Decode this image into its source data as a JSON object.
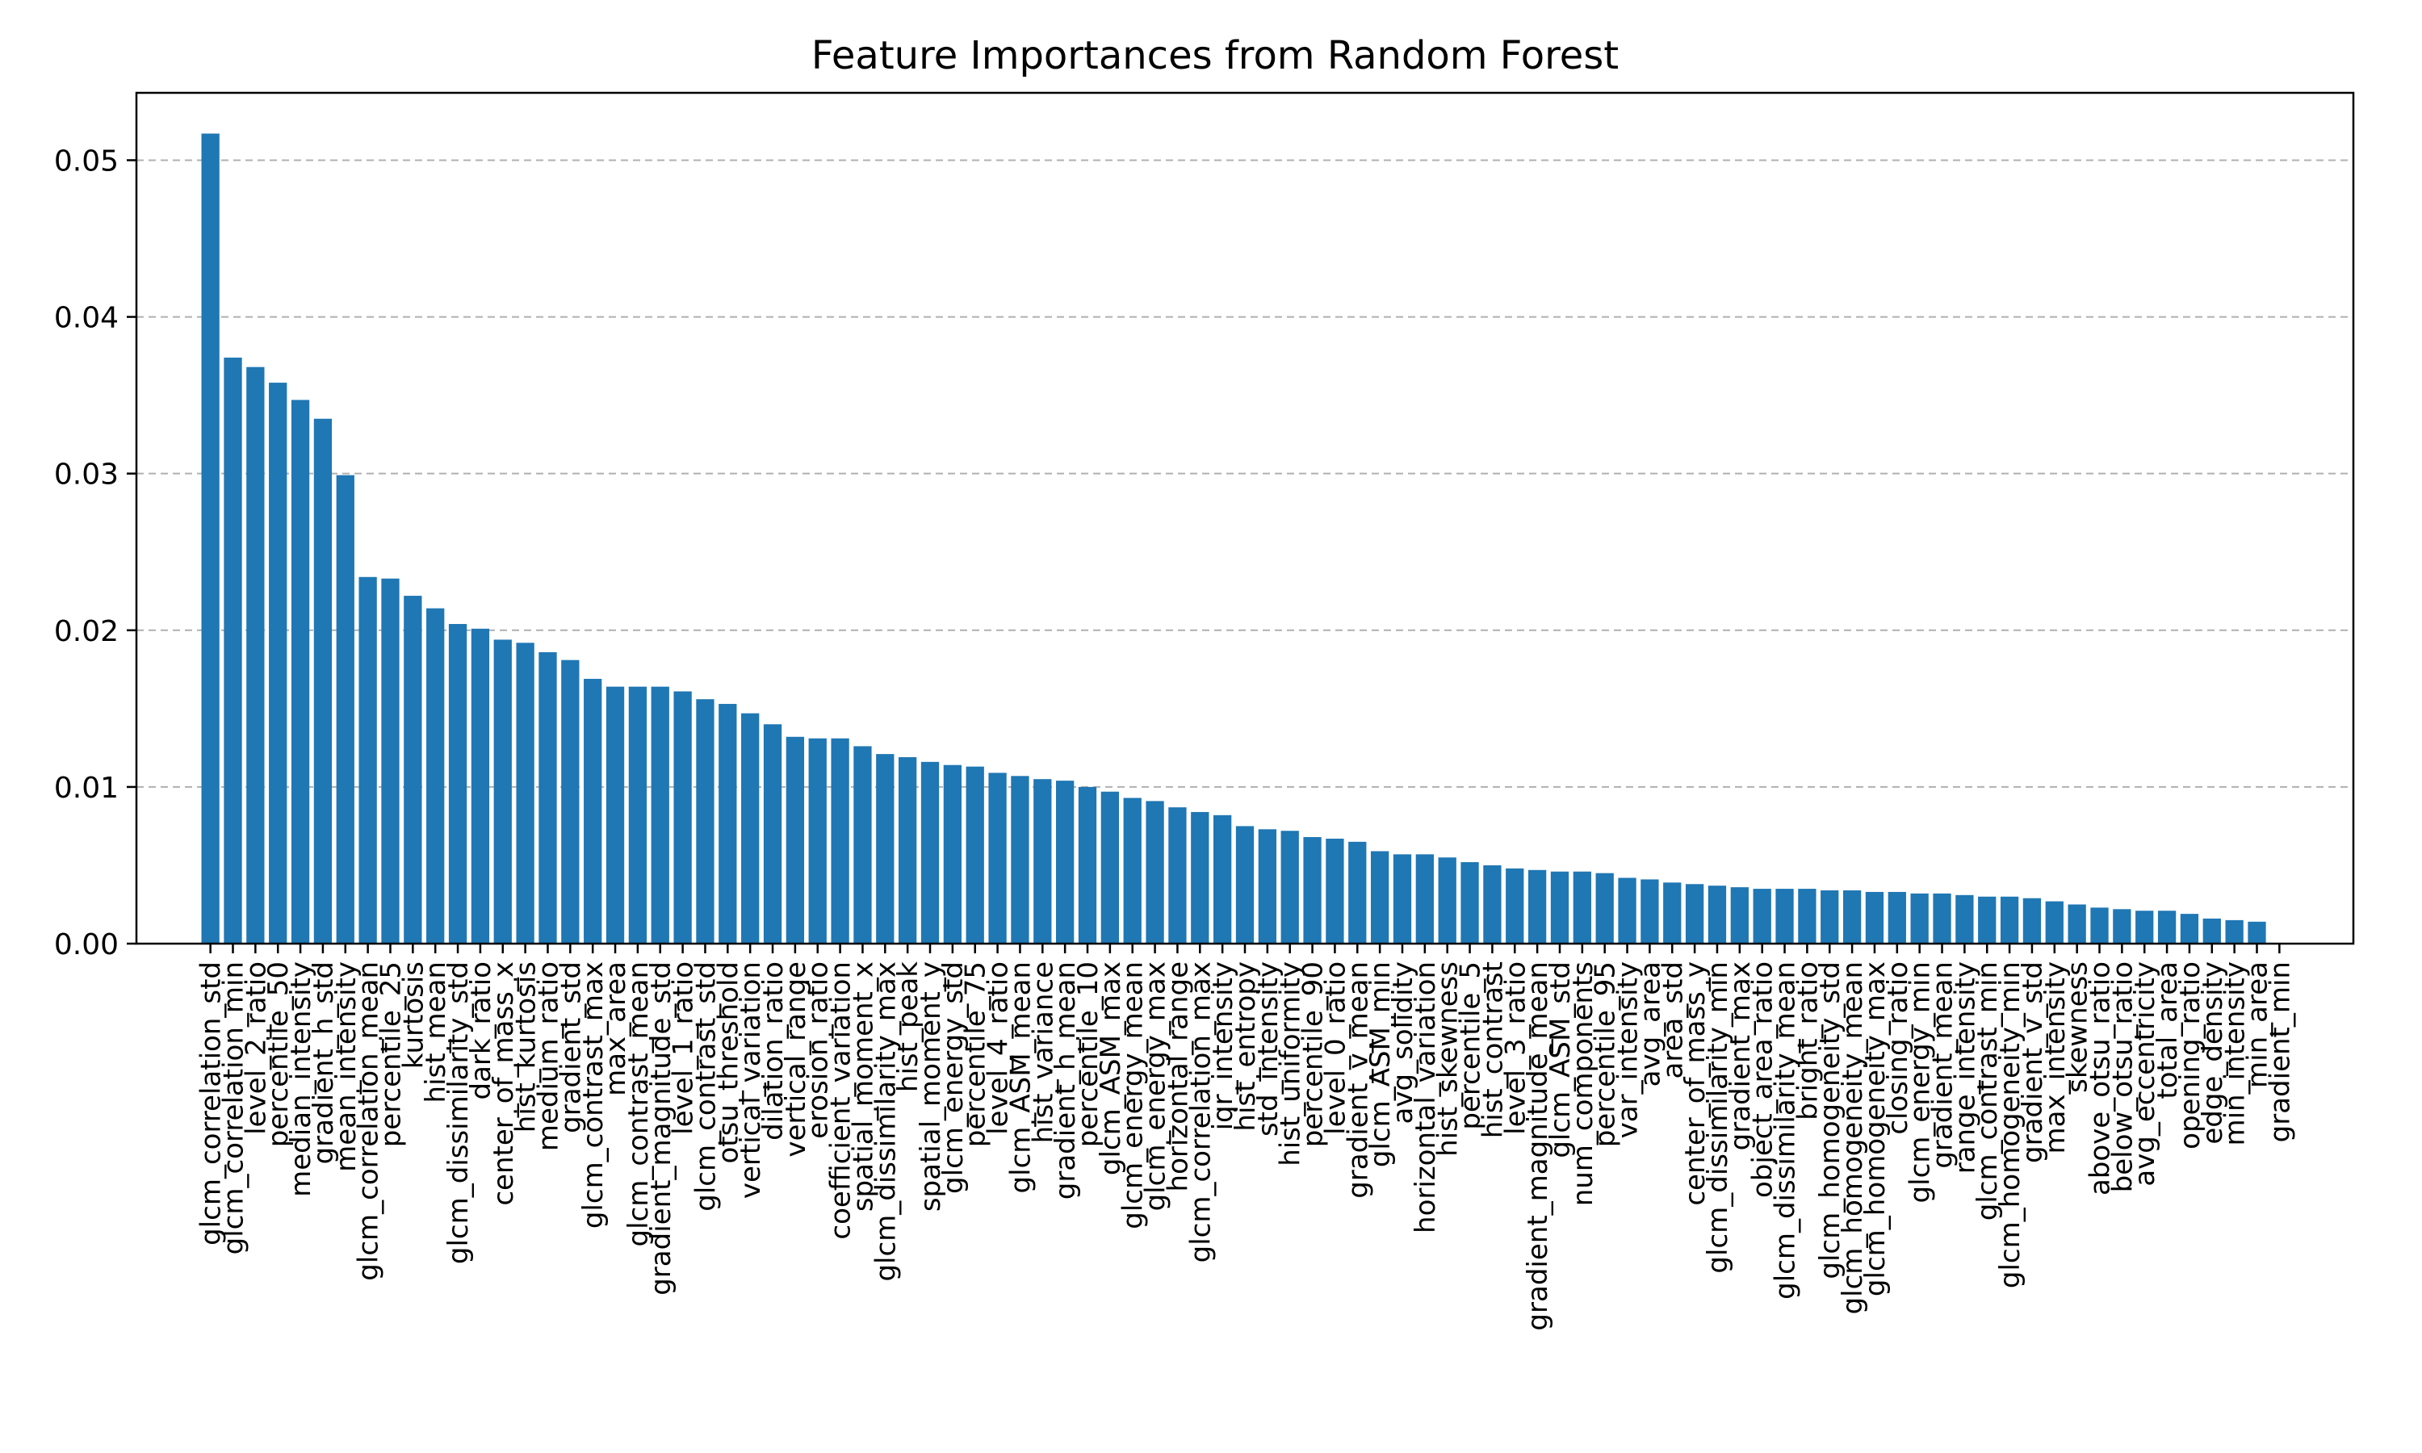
{
  "chart_data": {
    "type": "bar",
    "title": "Feature Importances from Random Forest",
    "xlabel": "",
    "ylabel": "",
    "ylim": [
      0,
      0.0543
    ],
    "yticks": [
      0.0,
      0.01,
      0.02,
      0.03,
      0.04,
      0.05
    ],
    "ytick_labels": [
      "0.00",
      "0.01",
      "0.02",
      "0.03",
      "0.04",
      "0.05"
    ],
    "grid": "y-dashed",
    "bar_color": "#1f77b4",
    "categories": [
      "glcm_correlation_std",
      "glcm_correlation_min",
      "level_2_ratio",
      "percentile_50",
      "median_intensity",
      "gradient_h_std",
      "mean_intensity",
      "glcm_correlation_mean",
      "percentile_25",
      "kurtosis",
      "hist_mean",
      "glcm_dissimilarity_std",
      "dark_ratio",
      "center_of_mass_x",
      "hist_kurtosis",
      "medium_ratio",
      "gradient_std",
      "glcm_contrast_max",
      "max_area",
      "glcm_contrast_mean",
      "gradient_magnitude_std",
      "level_1_ratio",
      "glcm_contrast_std",
      "otsu_threshold",
      "vertical_variation",
      "dilation_ratio",
      "vertical_range",
      "erosion_ratio",
      "coefficient_variation",
      "spatial_moment_x",
      "glcm_dissimilarity_max",
      "hist_peak",
      "spatial_moment_y",
      "glcm_energy_std",
      "percentile_75",
      "level_4_ratio",
      "glcm_ASM_mean",
      "hist_variance",
      "gradient_h_mean",
      "percentile_10",
      "glcm_ASM_max",
      "glcm_energy_mean",
      "glcm_energy_max",
      "horizontal_range",
      "glcm_correlation_max",
      "iqr_intensity",
      "hist_entropy",
      "std_intensity",
      "hist_uniformity",
      "percentile_90",
      "level_0_ratio",
      "gradient_v_mean",
      "glcm_ASM_min",
      "avg_solidity",
      "horizontal_variation",
      "hist_skewness",
      "percentile_5",
      "hist_contrast",
      "level_3_ratio",
      "gradient_magnitude_mean",
      "glcm_ASM_std",
      "num_components",
      "percentile_95",
      "var_intensity",
      "avg_area",
      "area_std",
      "center_of_mass_y",
      "glcm_dissimilarity_min",
      "gradient_max",
      "object_area_ratio",
      "glcm_dissimilarity_mean",
      "bright_ratio",
      "glcm_homogeneity_std",
      "glcm_homogeneity_mean",
      "glcm_homogeneity_max",
      "closing_ratio",
      "glcm_energy_min",
      "gradient_mean",
      "range_intensity",
      "glcm_contrast_min",
      "glcm_homogeneity_min",
      "gradient_v_std",
      "max_intensity",
      "skewness",
      "above_otsu_ratio",
      "below_otsu_ratio",
      "avg_eccentricity",
      "total_area",
      "opening_ratio",
      "edge_density",
      "min_intensity",
      "min_area",
      "gradient_min"
    ],
    "values": [
      0.0517,
      0.0374,
      0.0368,
      0.0358,
      0.0347,
      0.0335,
      0.0299,
      0.0234,
      0.0233,
      0.0222,
      0.0214,
      0.0204,
      0.0201,
      0.0194,
      0.0192,
      0.0186,
      0.0181,
      0.0169,
      0.0164,
      0.0164,
      0.0164,
      0.0161,
      0.0156,
      0.0153,
      0.0147,
      0.014,
      0.0132,
      0.0131,
      0.0131,
      0.0126,
      0.0121,
      0.0119,
      0.0116,
      0.0114,
      0.0113,
      0.0109,
      0.0107,
      0.0105,
      0.0104,
      0.01,
      0.0097,
      0.0093,
      0.0091,
      0.0087,
      0.0084,
      0.0082,
      0.0075,
      0.0073,
      0.0072,
      0.0068,
      0.0067,
      0.0065,
      0.0059,
      0.0057,
      0.0057,
      0.0055,
      0.0052,
      0.005,
      0.0048,
      0.0047,
      0.0046,
      0.0046,
      0.0045,
      0.0042,
      0.0041,
      0.0039,
      0.0038,
      0.0037,
      0.0036,
      0.0035,
      0.0035,
      0.0035,
      0.0034,
      0.0034,
      0.0033,
      0.0033,
      0.0032,
      0.0032,
      0.0031,
      0.003,
      0.003,
      0.0029,
      0.0027,
      0.0025,
      0.0023,
      0.0022,
      0.0021,
      0.0021,
      0.0019,
      0.0016,
      0.0015,
      0.0014,
      0.0
    ]
  }
}
